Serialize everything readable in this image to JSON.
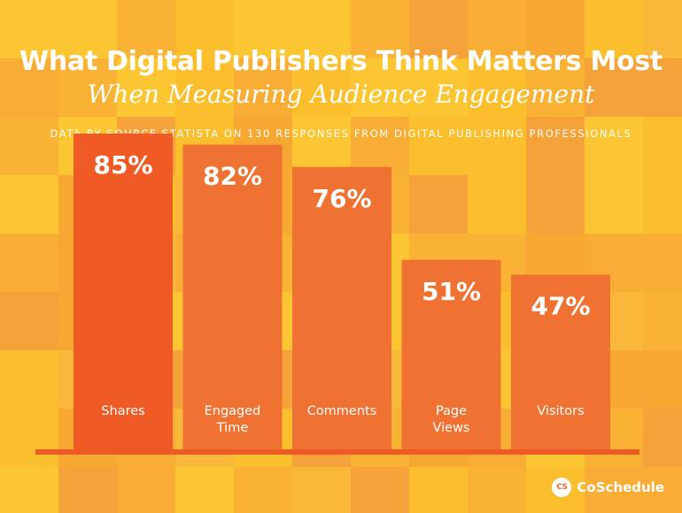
{
  "title": "What Digital Publishers Think Matters Most",
  "subtitle": "When Measuring Audience Engagement",
  "source": "DATA BY SOURCE STATISTA ON 130 RESPONSES FROM DIGITAL PUBLISHING PROFESSIONALS",
  "brand": {
    "logo_text": "CS",
    "name": "CoSchedule",
    "logo_icon": "coschedule-logo-icon"
  },
  "colors": {
    "background": "#f9b233",
    "bar_primary": "#f05a24",
    "bar_secondary": "#f07232",
    "baseline": "#ee5a25",
    "text": "#ffffff"
  },
  "chart_data": {
    "type": "bar",
    "categories": [
      "Shares",
      "Engaged Time",
      "Comments",
      "Page Views",
      "Visitors"
    ],
    "category_lines": [
      [
        "Shares"
      ],
      [
        "Engaged",
        "Time"
      ],
      [
        "Comments"
      ],
      [
        "Page",
        "Views"
      ],
      [
        "Visitors"
      ]
    ],
    "values": [
      85,
      82,
      76,
      51,
      47
    ],
    "value_labels": [
      "85%",
      "82%",
      "76%",
      "51%",
      "47%"
    ],
    "unit": "%",
    "ylim": [
      0,
      100
    ],
    "grid": false,
    "legend": "none"
  }
}
